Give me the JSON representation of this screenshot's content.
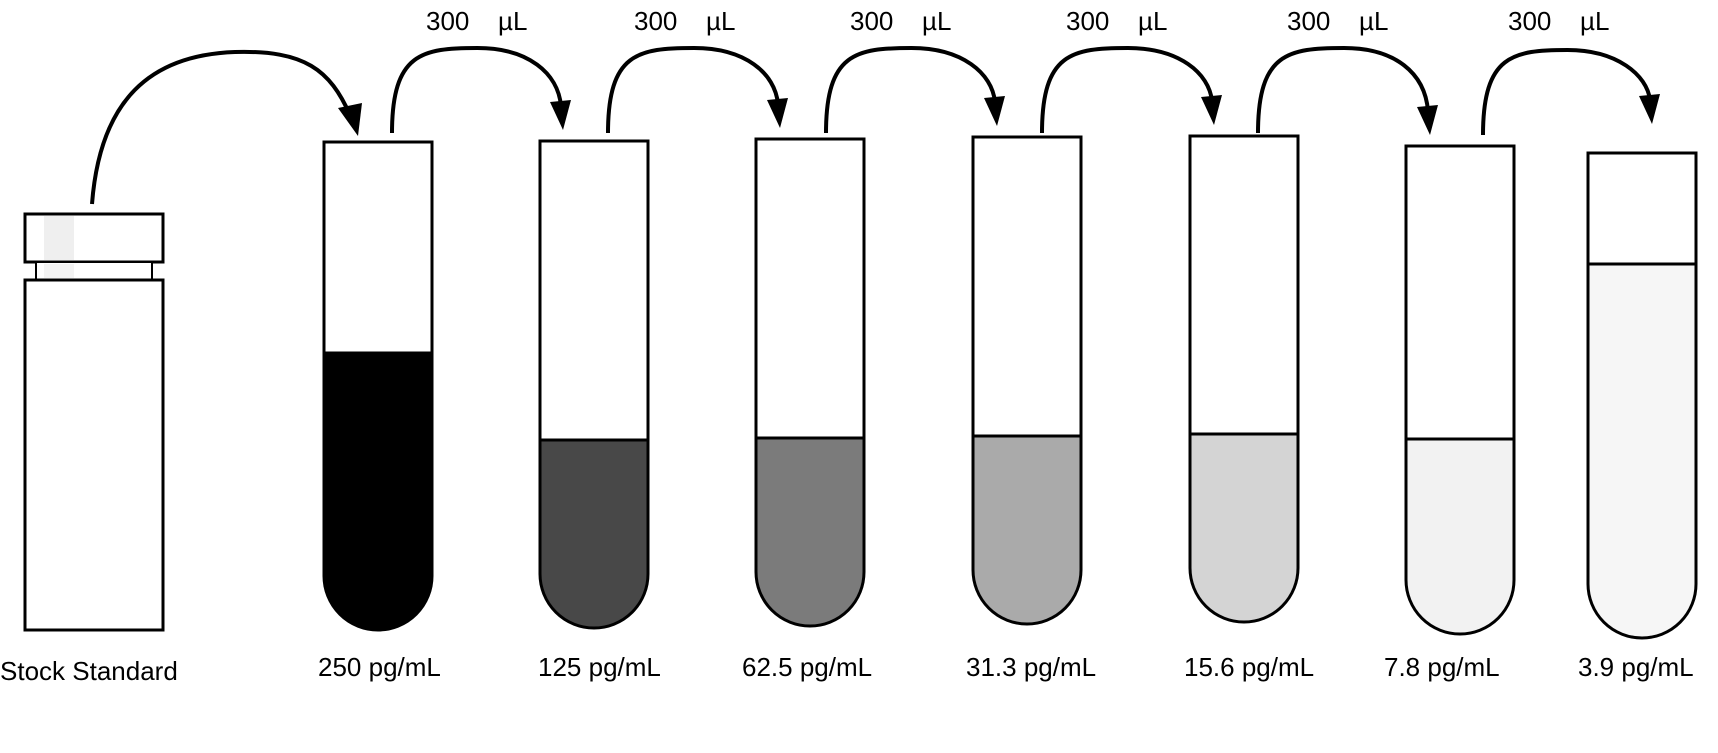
{
  "stock": {
    "label": "Stock Standard"
  },
  "tubes": [
    {
      "concentration": "250 pg/mL",
      "fill_color": "#000000"
    },
    {
      "concentration": "125 pg/mL",
      "fill_color": "#484848"
    },
    {
      "concentration": "62.5 pg/mL",
      "fill_color": "#7b7b7b"
    },
    {
      "concentration": "31.3 pg/mL",
      "fill_color": "#aaaaaa"
    },
    {
      "concentration": "15.6 pg/mL",
      "fill_color": "#d4d4d4"
    },
    {
      "concentration": "7.8 pg/mL",
      "fill_color": "#f2f2f2"
    },
    {
      "concentration": "3.9 pg/mL",
      "fill_color": "#f6f6f6"
    }
  ],
  "transfers": [
    {
      "volume": "300",
      "unit": "µL"
    },
    {
      "volume": "300",
      "unit": "µL"
    },
    {
      "volume": "300",
      "unit": "µL"
    },
    {
      "volume": "300",
      "unit": "µL"
    },
    {
      "volume": "300",
      "unit": "µL"
    },
    {
      "volume": "300",
      "unit": "µL"
    }
  ]
}
